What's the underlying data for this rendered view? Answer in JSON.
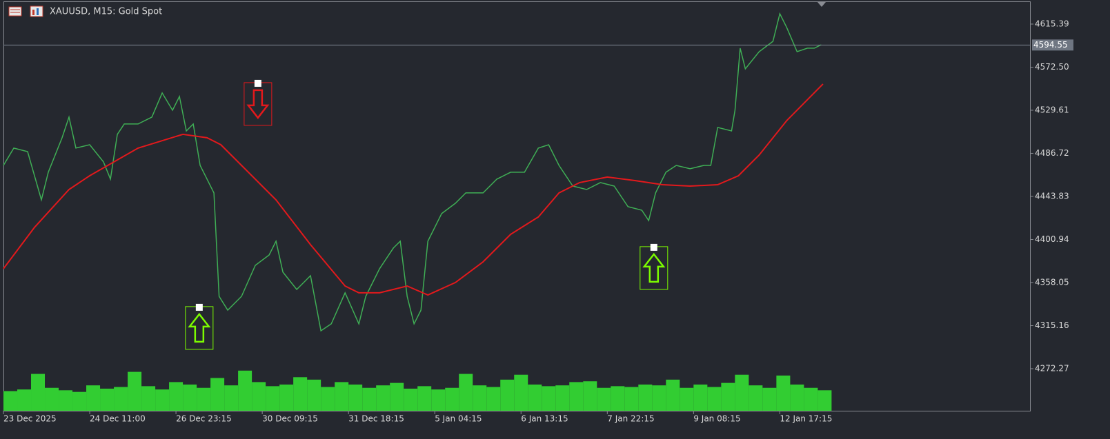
{
  "chart_data": {
    "type": "line",
    "title": "XAUUSD, M15:  Gold Spot",
    "xlim": [
      0,
      1190
    ],
    "xticks": [
      {
        "value": 0,
        "label": "23 Dec 2025"
      },
      {
        "value": 100,
        "label": "24 Dec 11:00"
      },
      {
        "value": 200,
        "label": "26 Dec 23:15"
      },
      {
        "value": 300,
        "label": "30 Dec 09:15"
      },
      {
        "value": 400,
        "label": "31 Dec 18:15"
      },
      {
        "value": 500,
        "label": "5 Jan 04:15"
      },
      {
        "value": 600,
        "label": "6 Jan 13:15"
      },
      {
        "value": 700,
        "label": "7 Jan 22:15"
      },
      {
        "value": 800,
        "label": "9 Jan 08:15"
      },
      {
        "value": 900,
        "label": "12 Jan 17:15"
      }
    ],
    "ylim": [
      4230.4,
      4638.0
    ],
    "yticks": [
      4615.39,
      {
        "value": 4572.5,
        "label": "4572.50"
      },
      4529.61,
      4486.72,
      4443.83,
      4400.94,
      4358.05,
      4315.16,
      4272.27
    ],
    "current_price": 4594.55,
    "y2lim": [
      0,
      10000
    ],
    "series": [
      {
        "color": "#3fae55",
        "x": [
          0,
          12,
          28,
          44,
          52,
          68,
          76,
          84,
          100,
          116,
          124,
          132,
          140,
          156,
          172,
          184,
          196,
          204,
          212,
          220,
          228,
          236,
          244,
          250,
          260,
          276,
          292,
          308,
          316,
          324,
          340,
          356,
          368,
          380,
          396,
          412,
          420,
          436,
          452,
          460,
          468,
          476,
          484,
          492,
          508,
          524,
          536,
          556,
          572,
          588,
          604,
          620,
          632,
          644,
          660,
          676,
          692,
          708,
          724,
          740,
          748,
          756,
          768,
          780,
          796,
          812,
          820,
          828,
          844,
          848,
          854,
          860,
          876,
          892,
          900,
          908,
          920,
          932,
          940,
          948
        ],
        "values": [
          4474.7,
          4491.9,
          4488.4,
          4440.4,
          4467.9,
          4502.2,
          4522.8,
          4491.9,
          4495.3,
          4478.2,
          4461.0,
          4505.6,
          4515.9,
          4515.9,
          4522.8,
          4546.8,
          4529.6,
          4543.3,
          4509.0,
          4515.9,
          4474.7,
          4461.0,
          4447.3,
          4344.3,
          4330.6,
          4344.3,
          4375.2,
          4385.5,
          4399.2,
          4368.4,
          4351.2,
          4364.9,
          4310.0,
          4316.9,
          4347.8,
          4316.9,
          4344.3,
          4371.8,
          4392.4,
          4399.2,
          4344.3,
          4316.9,
          4330.6,
          4399.2,
          4426.7,
          4437.0,
          4447.3,
          4447.3,
          4461.0,
          4467.9,
          4467.9,
          4491.9,
          4495.3,
          4474.7,
          4454.1,
          4450.7,
          4457.6,
          4454.1,
          4433.6,
          4430.1,
          4419.8,
          4447.3,
          4467.9,
          4474.7,
          4471.3,
          4474.7,
          4474.7,
          4512.5,
          4509.0,
          4529.6,
          4591.4,
          4570.8,
          4587.9,
          4598.2,
          4625.7,
          4612.0,
          4587.9,
          4591.4,
          4591.4,
          4594.8
        ]
      },
      {
        "color": "#e3191c",
        "x": [
          0,
          36,
          76,
          100,
          156,
          208,
          236,
          252,
          316,
          356,
          396,
          412,
          436,
          468,
          492,
          524,
          556,
          588,
          620,
          644,
          668,
          700,
          732,
          764,
          796,
          828,
          852,
          876,
          908,
          950
        ],
        "values": [
          4371.8,
          4413.0,
          4450.7,
          4464.4,
          4491.9,
          4505.6,
          4502.2,
          4495.3,
          4440.4,
          4395.8,
          4354.6,
          4347.8,
          4347.8,
          4354.6,
          4345.7,
          4358.1,
          4378.6,
          4406.1,
          4423.3,
          4447.3,
          4457.6,
          4463.1,
          4459.6,
          4455.5,
          4454.1,
          4455.5,
          4464.4,
          4485.0,
          4519.3,
          4555.7
        ]
      }
    ],
    "volume": {
      "color": "#32cd32",
      "axis": "y2",
      "x": [
        0,
        16,
        32,
        48,
        64,
        80,
        96,
        112,
        128,
        144,
        160,
        176,
        192,
        208,
        224,
        240,
        256,
        272,
        288,
        304,
        320,
        336,
        352,
        368,
        384,
        400,
        416,
        432,
        448,
        464,
        480,
        496,
        512,
        528,
        544,
        560,
        576,
        592,
        608,
        624,
        640,
        656,
        672,
        688,
        704,
        720,
        736,
        752,
        768,
        784,
        800,
        816,
        832,
        848,
        864,
        880,
        896,
        912,
        928,
        944
      ],
      "values": [
        480,
        520,
        900,
        560,
        500,
        460,
        620,
        540,
        580,
        950,
        600,
        520,
        700,
        640,
        560,
        800,
        620,
        980,
        700,
        600,
        640,
        820,
        760,
        580,
        700,
        640,
        560,
        620,
        680,
        540,
        600,
        520,
        560,
        900,
        620,
        580,
        760,
        880,
        640,
        600,
        620,
        700,
        720,
        560,
        600,
        580,
        640,
        620,
        760,
        560,
        640,
        580,
        680,
        880,
        620,
        560,
        860,
        640,
        560,
        500
      ]
    },
    "signals": [
      {
        "direction": "up",
        "x": 227,
        "price": 4333.4,
        "color": "#7cfc00"
      },
      {
        "direction": "down",
        "x": 295,
        "price": 4556.4,
        "color": "#e3191c"
      },
      {
        "direction": "up",
        "x": 754,
        "price": 4393.1,
        "color": "#7cfc00"
      }
    ]
  }
}
